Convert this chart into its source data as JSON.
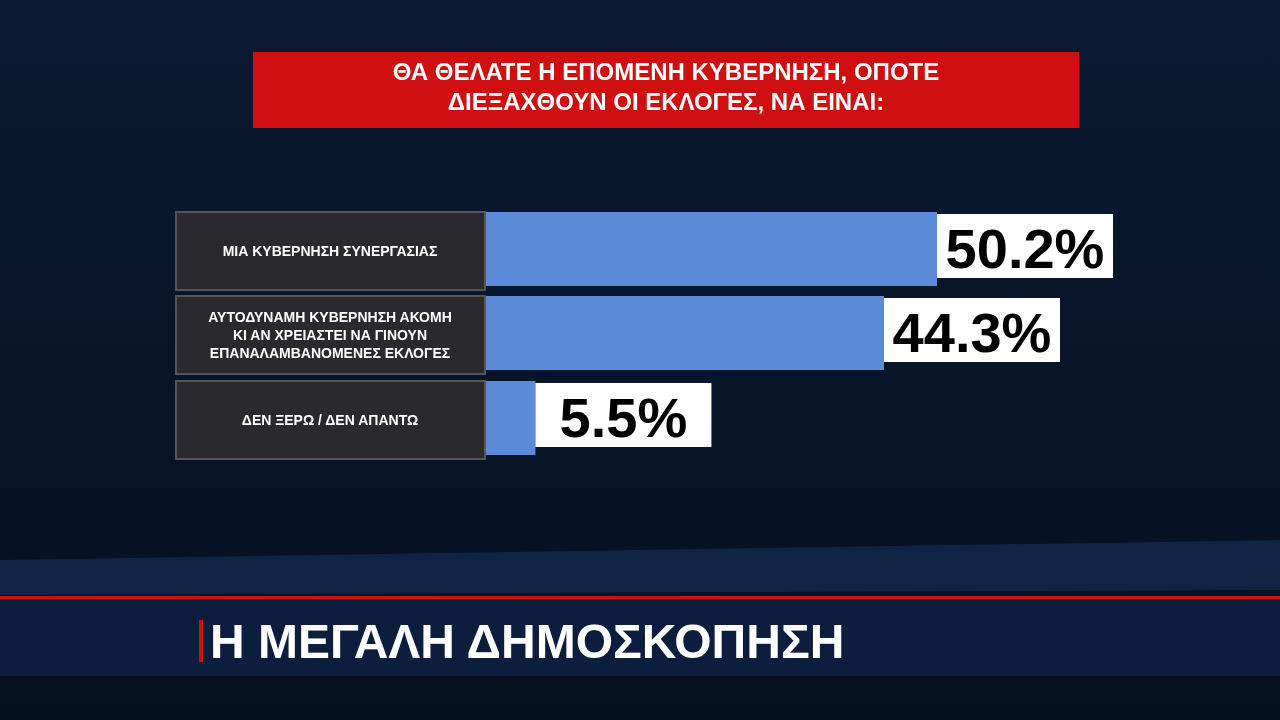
{
  "chart_data": {
    "type": "bar",
    "orientation": "horizontal",
    "title": "ΘΑ ΘΕΛΑΤΕ Η ΕΠΟΜΕΝΗ ΚΥΒΕΡΝΗΣΗ, ΟΠΟΤΕ ΔΙΕΞΑΧΘΟΥΝ ΟΙ ΕΚΛΟΓΕΣ, ΝΑ ΕΙΝΑΙ:",
    "categories": [
      "ΜΙΑ ΚΥΒΕΡΝΗΣΗ ΣΥΝΕΡΓΑΣΙΑΣ",
      "ΑΥΤΟΔΥΝΑΜΗ ΚΥΒΕΡΝΗΣΗ ΑΚΟΜΗ ΚΙ ΑΝ ΧΡΕΙΑΣΤΕΙ ΝΑ ΓΙΝΟΥΝ ΕΠΑΝΑΛΑΜΒΑΝΟΜΕΝΕΣ ΕΚΛΟΓΕΣ",
      "ΔΕΝ ΞΕΡΩ / ΔΕΝ ΑΠΑΝΤΩ"
    ],
    "values": [
      50.2,
      44.3,
      5.5
    ],
    "value_labels": [
      "50.2%",
      "44.3%",
      "5.5%"
    ],
    "color": "#5b8bd6",
    "annotations": [
      "Η ΜΕΓΑΛΗ ΔΗΜΟΣΚΟΠΗΣΗ"
    ]
  }
}
